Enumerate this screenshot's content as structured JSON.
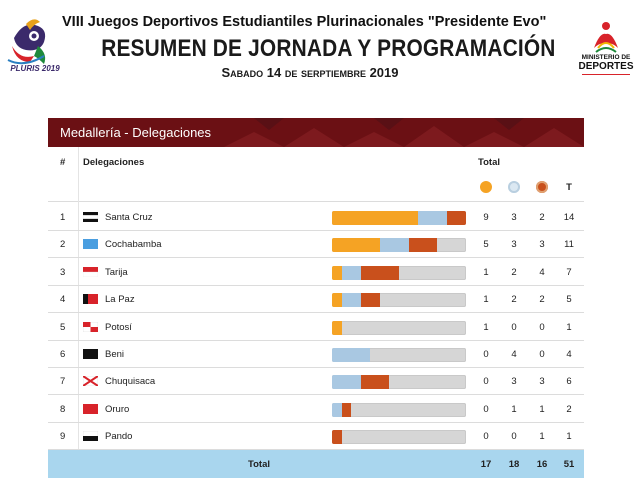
{
  "header": {
    "line1": "VIII Juegos Deportivos Estudiantiles Plurinacionales \"Presidente Evo\"",
    "line2": "RESUMEN DE JORNADA Y PROGRAMACIÓN",
    "line3": "Sabado 14 de serptiembre 2019",
    "logo_left_text": "PLURIS 2019",
    "logo_right_line1": "MINISTERIO DE",
    "logo_right_line2": "DEPORTES"
  },
  "panel": {
    "title": "Medallería - Delegaciones",
    "col_num": "#",
    "col_delegations": "Delegaciones",
    "col_total": "Total",
    "col_t": "T",
    "total_label": "Total"
  },
  "colors": {
    "gold": "#f5a324",
    "silver": "#a9c8e2",
    "bronze": "#c9501c",
    "header_bg": "#6b1014",
    "total_bg": "#a9d6ee"
  },
  "rows": [
    {
      "num": "1",
      "name": "Santa Cruz",
      "flag": "santa-cruz-flag",
      "gold": "9",
      "silver": "3",
      "bronze": "2",
      "total": "14"
    },
    {
      "num": "2",
      "name": "Cochabamba",
      "flag": "cochabamba-flag",
      "gold": "5",
      "silver": "3",
      "bronze": "3",
      "total": "11"
    },
    {
      "num": "3",
      "name": "Tarija",
      "flag": "tarija-flag",
      "gold": "1",
      "silver": "2",
      "bronze": "4",
      "total": "7"
    },
    {
      "num": "4",
      "name": "La Paz",
      "flag": "la-paz-flag",
      "gold": "1",
      "silver": "2",
      "bronze": "2",
      "total": "5"
    },
    {
      "num": "5",
      "name": "Potosí",
      "flag": "potosi-flag",
      "gold": "1",
      "silver": "0",
      "bronze": "0",
      "total": "1"
    },
    {
      "num": "6",
      "name": "Beni",
      "flag": "beni-flag",
      "gold": "0",
      "silver": "4",
      "bronze": "0",
      "total": "4"
    },
    {
      "num": "7",
      "name": "Chuquisaca",
      "flag": "chuquisaca-flag",
      "gold": "0",
      "silver": "3",
      "bronze": "3",
      "total": "6"
    },
    {
      "num": "8",
      "name": "Oruro",
      "flag": "oruro-flag",
      "gold": "0",
      "silver": "1",
      "bronze": "1",
      "total": "2"
    },
    {
      "num": "9",
      "name": "Pando",
      "flag": "pando-flag",
      "gold": "0",
      "silver": "0",
      "bronze": "1",
      "total": "1"
    }
  ],
  "totals": {
    "gold": "17",
    "silver": "18",
    "bronze": "16",
    "total": "51"
  }
}
